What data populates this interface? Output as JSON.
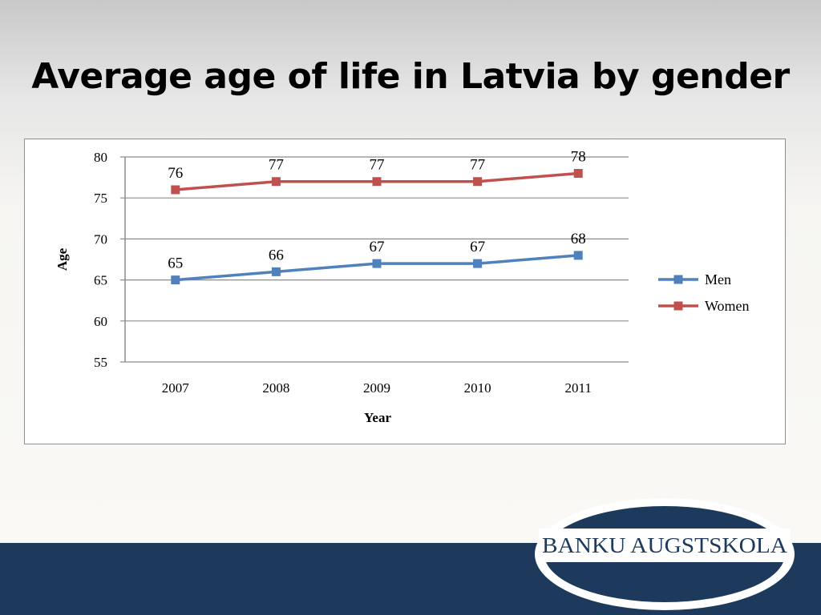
{
  "slide": {
    "title": "Average age of life in Latvia by gender",
    "logo_text": "BANKU  AUGSTSKOLA"
  },
  "colors": {
    "men": "#4f81bd",
    "women": "#c0504d",
    "footer": "#1d3a5c",
    "gridline": "#8c8c8c"
  },
  "chart_data": {
    "type": "line",
    "title": "",
    "xlabel": "Year",
    "ylabel": "Age",
    "categories": [
      "2007",
      "2008",
      "2009",
      "2010",
      "2011"
    ],
    "ylim": [
      55,
      80
    ],
    "yticks": [
      55,
      60,
      65,
      70,
      75,
      80
    ],
    "grid": true,
    "legend_position": "right",
    "series": [
      {
        "name": "Men",
        "values": [
          65,
          66,
          67,
          67,
          68
        ],
        "color": "#4f81bd"
      },
      {
        "name": "Women",
        "values": [
          76,
          77,
          77,
          77,
          78
        ],
        "color": "#c0504d"
      }
    ]
  }
}
